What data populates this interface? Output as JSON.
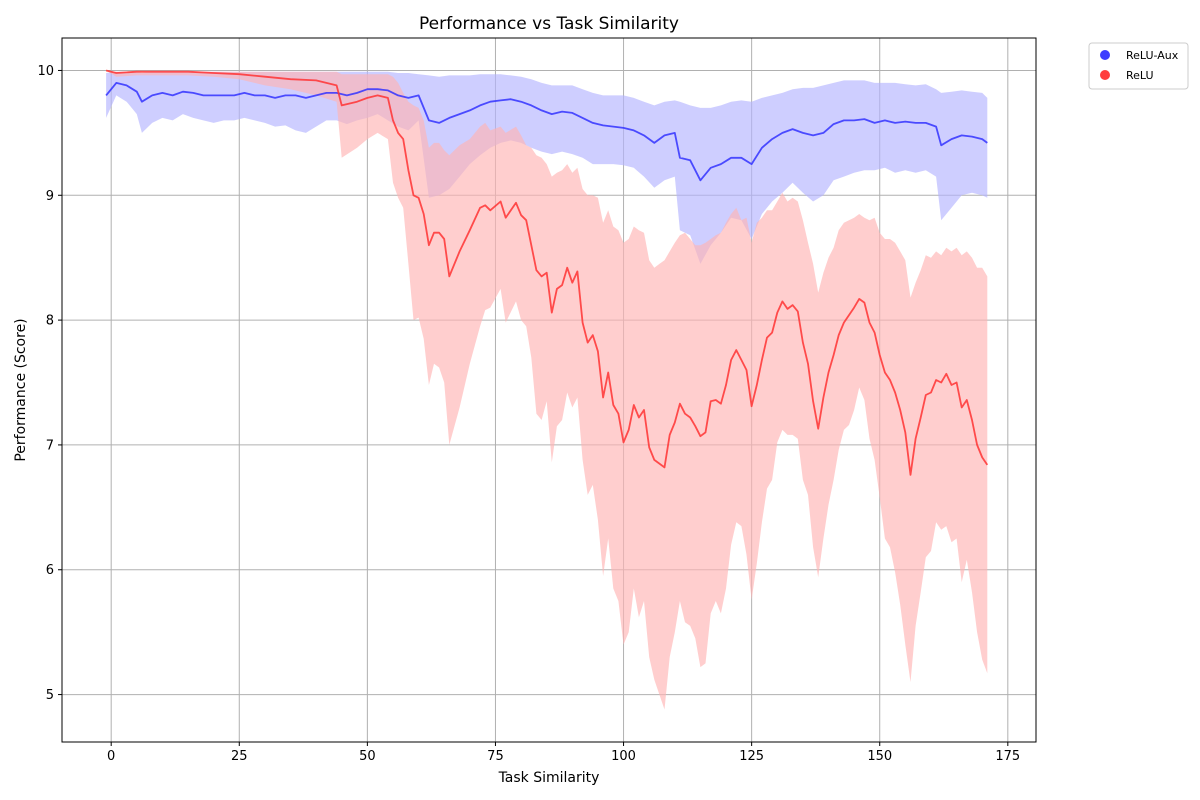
{
  "chart_data": {
    "type": "line",
    "title": "Performance vs Task Similarity",
    "xlabel": "Task Similarity",
    "ylabel": "Performance (Score)",
    "xlim": [
      -9.6,
      180.5
    ],
    "ylim": [
      4.62,
      10.26
    ],
    "xticks": [
      0,
      25,
      50,
      75,
      100,
      125,
      150,
      175
    ],
    "yticks": [
      5,
      6,
      7,
      8,
      9,
      10
    ],
    "grid": true,
    "legend_position": "outside-top-right",
    "series": [
      {
        "name": "ReLU-Aux",
        "color": "#3333ff",
        "band_color": "#b3b3ff",
        "x": [
          -1,
          1,
          3,
          5,
          6,
          8,
          10,
          12,
          14,
          16,
          18,
          20,
          22,
          24,
          26,
          28,
          30,
          32,
          34,
          36,
          38,
          40,
          42,
          44,
          46,
          48,
          50,
          52,
          54,
          56,
          58,
          60,
          62,
          64,
          66,
          68,
          70,
          72,
          74,
          76,
          78,
          80,
          82,
          84,
          86,
          88,
          90,
          92,
          94,
          96,
          98,
          100,
          102,
          104,
          106,
          108,
          110,
          111,
          113,
          115,
          117,
          119,
          121,
          123,
          125,
          127,
          129,
          131,
          133,
          135,
          137,
          139,
          141,
          143,
          145,
          147,
          149,
          151,
          153,
          155,
          157,
          159,
          161,
          162,
          164,
          166,
          168,
          170,
          171
        ],
        "mean": [
          9.8,
          9.9,
          9.88,
          9.83,
          9.75,
          9.8,
          9.82,
          9.8,
          9.83,
          9.82,
          9.8,
          9.8,
          9.8,
          9.8,
          9.82,
          9.8,
          9.8,
          9.78,
          9.8,
          9.8,
          9.78,
          9.8,
          9.82,
          9.82,
          9.8,
          9.82,
          9.85,
          9.85,
          9.84,
          9.8,
          9.78,
          9.8,
          9.6,
          9.58,
          9.62,
          9.65,
          9.68,
          9.72,
          9.75,
          9.76,
          9.77,
          9.75,
          9.72,
          9.68,
          9.65,
          9.67,
          9.66,
          9.62,
          9.58,
          9.56,
          9.55,
          9.54,
          9.52,
          9.48,
          9.42,
          9.48,
          9.5,
          9.3,
          9.28,
          9.12,
          9.22,
          9.25,
          9.3,
          9.3,
          9.25,
          9.38,
          9.45,
          9.5,
          9.53,
          9.5,
          9.48,
          9.5,
          9.57,
          9.6,
          9.6,
          9.61,
          9.58,
          9.6,
          9.58,
          9.59,
          9.58,
          9.58,
          9.55,
          9.4,
          9.45,
          9.48,
          9.47,
          9.45,
          9.42
        ],
        "lower": [
          9.62,
          9.8,
          9.75,
          9.65,
          9.5,
          9.58,
          9.62,
          9.6,
          9.65,
          9.62,
          9.6,
          9.58,
          9.6,
          9.6,
          9.62,
          9.6,
          9.58,
          9.55,
          9.56,
          9.52,
          9.5,
          9.55,
          9.6,
          9.6,
          9.57,
          9.6,
          9.62,
          9.65,
          9.6,
          9.55,
          9.52,
          9.6,
          8.98,
          9.0,
          9.05,
          9.15,
          9.25,
          9.32,
          9.38,
          9.42,
          9.44,
          9.42,
          9.38,
          9.35,
          9.33,
          9.35,
          9.33,
          9.3,
          9.25,
          9.25,
          9.25,
          9.24,
          9.22,
          9.15,
          9.06,
          9.12,
          9.15,
          8.72,
          8.68,
          8.45,
          8.6,
          8.7,
          8.82,
          8.8,
          8.65,
          8.85,
          8.95,
          9.02,
          9.1,
          9.02,
          8.95,
          9.0,
          9.12,
          9.15,
          9.18,
          9.2,
          9.2,
          9.22,
          9.18,
          9.2,
          9.18,
          9.2,
          9.15,
          8.8,
          8.9,
          9.0,
          9.02,
          9.0,
          8.98
        ],
        "upper": [
          9.98,
          9.99,
          9.99,
          9.99,
          9.98,
          9.99,
          9.99,
          9.99,
          9.99,
          9.99,
          9.99,
          9.99,
          9.99,
          9.99,
          9.99,
          9.99,
          9.99,
          9.99,
          9.99,
          9.99,
          9.99,
          9.99,
          9.99,
          9.99,
          9.99,
          9.99,
          9.99,
          9.99,
          9.99,
          9.98,
          9.98,
          9.97,
          9.96,
          9.95,
          9.96,
          9.96,
          9.96,
          9.97,
          9.97,
          9.97,
          9.96,
          9.95,
          9.93,
          9.9,
          9.88,
          9.88,
          9.88,
          9.85,
          9.82,
          9.8,
          9.8,
          9.8,
          9.78,
          9.75,
          9.72,
          9.75,
          9.76,
          9.75,
          9.72,
          9.7,
          9.7,
          9.72,
          9.75,
          9.76,
          9.75,
          9.78,
          9.8,
          9.82,
          9.85,
          9.86,
          9.86,
          9.88,
          9.9,
          9.92,
          9.92,
          9.92,
          9.9,
          9.9,
          9.9,
          9.89,
          9.88,
          9.89,
          9.85,
          9.82,
          9.83,
          9.84,
          9.83,
          9.82,
          9.78
        ]
      },
      {
        "name": "ReLU",
        "color": "#ff3333",
        "band_color": "#ffb3b3",
        "x": [
          -1,
          1,
          5,
          10,
          15,
          20,
          25,
          30,
          35,
          40,
          44,
          45,
          48,
          50,
          52,
          54,
          55,
          56,
          57,
          58,
          59,
          60,
          61,
          62,
          63,
          64,
          65,
          66,
          68,
          70,
          72,
          73,
          74,
          76,
          77,
          79,
          80,
          81,
          82,
          83,
          84,
          85,
          86,
          87,
          88,
          89,
          90,
          91,
          92,
          93,
          94,
          95,
          96,
          97,
          98,
          99,
          100,
          101,
          102,
          103,
          104,
          105,
          106,
          107,
          108,
          109,
          110,
          111,
          112,
          113,
          114,
          115,
          116,
          117,
          118,
          119,
          120,
          121,
          122,
          123,
          124,
          125,
          126,
          127,
          128,
          129,
          130,
          131,
          132,
          133,
          134,
          135,
          136,
          137,
          138,
          139,
          140,
          141,
          142,
          143,
          144,
          145,
          146,
          147,
          148,
          149,
          150,
          151,
          152,
          153,
          154,
          155,
          156,
          157,
          158,
          159,
          160,
          161,
          162,
          163,
          164,
          165,
          166,
          167,
          168,
          169,
          170,
          171
        ],
        "mean": [
          10.0,
          9.98,
          9.99,
          9.99,
          9.99,
          9.98,
          9.97,
          9.95,
          9.93,
          9.92,
          9.88,
          9.72,
          9.75,
          9.78,
          9.8,
          9.78,
          9.6,
          9.5,
          9.45,
          9.2,
          9.0,
          8.98,
          8.85,
          8.6,
          8.7,
          8.7,
          8.65,
          8.35,
          8.55,
          8.72,
          8.9,
          8.92,
          8.88,
          8.95,
          8.82,
          8.94,
          8.84,
          8.8,
          8.6,
          8.4,
          8.35,
          8.38,
          8.06,
          8.25,
          8.28,
          8.42,
          8.3,
          8.39,
          7.98,
          7.82,
          7.88,
          7.75,
          7.38,
          7.58,
          7.32,
          7.25,
          7.02,
          7.12,
          7.32,
          7.22,
          7.28,
          6.98,
          6.88,
          6.85,
          6.82,
          7.08,
          7.18,
          7.33,
          7.25,
          7.22,
          7.15,
          7.07,
          7.1,
          7.35,
          7.36,
          7.33,
          7.48,
          7.68,
          7.76,
          7.68,
          7.6,
          7.31,
          7.48,
          7.68,
          7.86,
          7.9,
          8.06,
          8.15,
          8.09,
          8.12,
          8.07,
          7.82,
          7.65,
          7.35,
          7.13,
          7.38,
          7.58,
          7.72,
          7.88,
          7.98,
          8.04,
          8.1,
          8.17,
          8.14,
          7.98,
          7.9,
          7.72,
          7.58,
          7.52,
          7.42,
          7.28,
          7.1,
          6.76,
          7.05,
          7.22,
          7.4,
          7.42,
          7.52,
          7.5,
          7.57,
          7.48,
          7.5,
          7.3,
          7.36,
          7.2,
          7.0,
          6.9,
          6.84
        ],
        "lower": [
          10.0,
          9.95,
          9.96,
          9.96,
          9.96,
          9.95,
          9.93,
          9.88,
          9.85,
          9.8,
          9.75,
          9.3,
          9.38,
          9.45,
          9.5,
          9.45,
          9.1,
          8.98,
          8.9,
          8.45,
          8.0,
          8.02,
          7.85,
          7.48,
          7.65,
          7.62,
          7.5,
          7.0,
          7.3,
          7.65,
          7.95,
          8.08,
          8.1,
          8.25,
          7.98,
          8.15,
          8.0,
          7.95,
          7.7,
          7.25,
          7.2,
          7.35,
          6.86,
          7.15,
          7.2,
          7.42,
          7.3,
          7.38,
          6.88,
          6.6,
          6.68,
          6.4,
          5.95,
          6.25,
          5.85,
          5.75,
          5.4,
          5.5,
          5.85,
          5.62,
          5.75,
          5.3,
          5.12,
          5.0,
          4.88,
          5.3,
          5.5,
          5.75,
          5.58,
          5.55,
          5.45,
          5.22,
          5.25,
          5.65,
          5.75,
          5.65,
          5.85,
          6.2,
          6.38,
          6.35,
          6.12,
          5.76,
          6.05,
          6.38,
          6.65,
          6.72,
          7.02,
          7.12,
          7.08,
          7.08,
          7.05,
          6.72,
          6.6,
          6.18,
          5.94,
          6.25,
          6.52,
          6.72,
          6.96,
          7.12,
          7.16,
          7.28,
          7.46,
          7.36,
          7.05,
          6.88,
          6.58,
          6.25,
          6.18,
          5.98,
          5.72,
          5.4,
          5.1,
          5.55,
          5.82,
          6.1,
          6.15,
          6.38,
          6.32,
          6.35,
          6.22,
          6.25,
          5.9,
          6.08,
          5.82,
          5.5,
          5.28,
          5.17
        ],
        "upper": [
          10.0,
          9.99,
          9.99,
          9.99,
          9.99,
          9.99,
          9.99,
          9.99,
          9.99,
          9.99,
          9.99,
          9.97,
          9.97,
          9.97,
          9.97,
          9.97,
          9.95,
          9.9,
          9.82,
          9.75,
          9.72,
          9.7,
          9.6,
          9.38,
          9.42,
          9.42,
          9.36,
          9.32,
          9.4,
          9.45,
          9.55,
          9.58,
          9.52,
          9.55,
          9.5,
          9.55,
          9.48,
          9.4,
          9.38,
          9.32,
          9.3,
          9.25,
          9.15,
          9.18,
          9.2,
          9.25,
          9.18,
          9.22,
          9.05,
          9.0,
          9.0,
          8.98,
          8.78,
          8.88,
          8.75,
          8.72,
          8.62,
          8.65,
          8.75,
          8.72,
          8.7,
          8.48,
          8.42,
          8.45,
          8.48,
          8.55,
          8.62,
          8.68,
          8.7,
          8.65,
          8.6,
          8.6,
          8.62,
          8.65,
          8.68,
          8.7,
          8.78,
          8.85,
          8.9,
          8.8,
          8.82,
          8.62,
          8.78,
          8.82,
          8.88,
          8.88,
          8.95,
          9.02,
          8.95,
          8.98,
          8.95,
          8.8,
          8.62,
          8.45,
          8.22,
          8.38,
          8.5,
          8.58,
          8.72,
          8.78,
          8.8,
          8.82,
          8.85,
          8.82,
          8.8,
          8.82,
          8.7,
          8.65,
          8.65,
          8.62,
          8.55,
          8.48,
          8.18,
          8.3,
          8.4,
          8.52,
          8.5,
          8.55,
          8.52,
          8.58,
          8.55,
          8.58,
          8.52,
          8.55,
          8.5,
          8.42,
          8.42,
          8.35
        ]
      }
    ]
  }
}
